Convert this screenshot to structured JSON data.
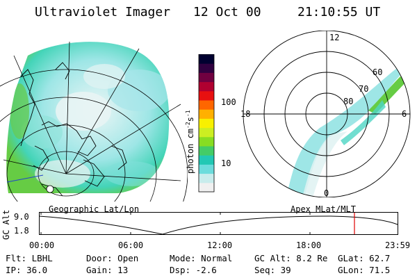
{
  "header": {
    "instrument": "Ultraviolet Imager",
    "date": "12 Oct 00",
    "time": "21:10:55 UT"
  },
  "colorbar": {
    "label": "photon cm",
    "label_exp": "-2",
    "label_unit": "s",
    "label_unit_exp": "-1",
    "tick_100": "100",
    "tick_10": "10",
    "scale": "log",
    "colors": [
      "#f0f0f0",
      "#c8ecec",
      "#6cdcdc",
      "#22c8b4",
      "#44cc66",
      "#88dd22",
      "#ccee22",
      "#f8f000",
      "#ffb000",
      "#ff6600",
      "#e81010",
      "#b00030",
      "#700040",
      "#300040",
      "#000030"
    ]
  },
  "geo_panel": {
    "caption": "Geographic Lat/Lon"
  },
  "polar_panel": {
    "caption": "Apex MLat/MLT",
    "mlt_labels": {
      "top": "12",
      "left": "18",
      "right": "6",
      "bottom": "0"
    },
    "lat_labels": [
      "60",
      "70",
      "80"
    ]
  },
  "altitude_plot": {
    "ylabel": "GC Alt",
    "ytick_top": "9.0",
    "ytick_bottom": "1.8",
    "xticks": [
      "00:00",
      "06:00",
      "12:00",
      "18:00",
      "23:59"
    ],
    "marker_color": "#e00000"
  },
  "info": {
    "flt_label": "Flt:",
    "flt_value": "LBHL",
    "ip_label": "IP:",
    "ip_value": "36.0",
    "door_label": "Door:",
    "door_value": "Open",
    "gain_label": "Gain:",
    "gain_value": "13",
    "mode_label": "Mode:",
    "mode_value": "Normal",
    "dsp_label": "Dsp:",
    "dsp_value": "-2.6",
    "gcalt_label": "GC Alt:",
    "gcalt_value": "8.2 Re",
    "seq_label": "Seq:",
    "seq_value": "39",
    "glat_label": "GLat:",
    "glat_value": "62.7",
    "glon_label": "GLon:",
    "glon_value": "71.5"
  }
}
